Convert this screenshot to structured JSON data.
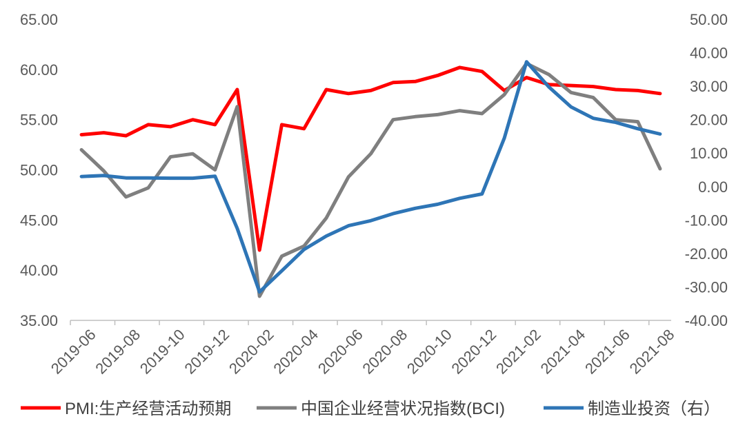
{
  "chart_data": {
    "type": "line",
    "title": "",
    "xlabel": "",
    "ylabel_left": "",
    "ylabel_right": "",
    "grid": false,
    "legend_position": "bottom",
    "x": [
      "2019-06",
      "2019-07",
      "2019-08",
      "2019-09",
      "2019-10",
      "2019-11",
      "2019-12",
      "2020-01",
      "2020-02",
      "2020-03",
      "2020-04",
      "2020-05",
      "2020-06",
      "2020-07",
      "2020-08",
      "2020-09",
      "2020-10",
      "2020-11",
      "2020-12",
      "2021-01",
      "2021-02",
      "2021-03",
      "2021-04",
      "2021-05",
      "2021-06",
      "2021-07",
      "2021-08"
    ],
    "x_tick_labels": [
      "2019-06",
      "2019-08",
      "2019-10",
      "2019-12",
      "2020-02",
      "2020-04",
      "2020-06",
      "2020-08",
      "2020-10",
      "2020-12",
      "2021-02",
      "2021-04",
      "2021-06",
      "2021-08"
    ],
    "y_left": {
      "min": 35,
      "max": 65,
      "step": 5,
      "tick_labels": [
        "35.00",
        "40.00",
        "45.00",
        "50.00",
        "55.00",
        "60.00",
        "65.00"
      ]
    },
    "y_right": {
      "min": -40,
      "max": 50,
      "step": 10,
      "tick_labels": [
        "-40.00",
        "-30.00",
        "-20.00",
        "-10.00",
        "0.00",
        "10.00",
        "20.00",
        "30.00",
        "40.00",
        "50.00"
      ]
    },
    "series": [
      {
        "name": "PMI:生产经营活动预期",
        "axis": "left",
        "color": "#ff0000",
        "values": [
          53.5,
          53.7,
          53.4,
          54.5,
          54.3,
          55.0,
          54.5,
          58.0,
          42.0,
          54.5,
          54.1,
          58.0,
          57.6,
          57.9,
          58.7,
          58.8,
          59.4,
          60.2,
          59.8,
          57.9,
          59.2,
          58.5,
          58.4,
          58.3,
          58.0,
          57.9,
          57.6
        ]
      },
      {
        "name": "中国企业经营状况指数(BCI)",
        "axis": "left",
        "color": "#7f7f7f",
        "values": [
          52.0,
          49.9,
          47.3,
          48.2,
          51.3,
          51.6,
          50.0,
          56.3,
          37.4,
          41.4,
          42.4,
          45.2,
          49.3,
          51.6,
          55.0,
          55.3,
          55.5,
          55.9,
          55.6,
          57.5,
          60.6,
          59.5,
          57.7,
          57.2,
          55.0,
          54.8,
          50.1
        ]
      },
      {
        "name": "制造业投资（右）",
        "axis": "right",
        "color": "#2e75b6",
        "values": [
          3.0,
          3.3,
          2.6,
          2.6,
          2.5,
          2.5,
          3.1,
          -12.5,
          -31.5,
          -25.2,
          -18.8,
          -14.8,
          -11.7,
          -10.2,
          -8.1,
          -6.5,
          -5.3,
          -3.5,
          -2.2,
          14.5,
          37.3,
          29.8,
          23.8,
          20.4,
          19.2,
          17.3,
          15.7
        ]
      }
    ]
  }
}
